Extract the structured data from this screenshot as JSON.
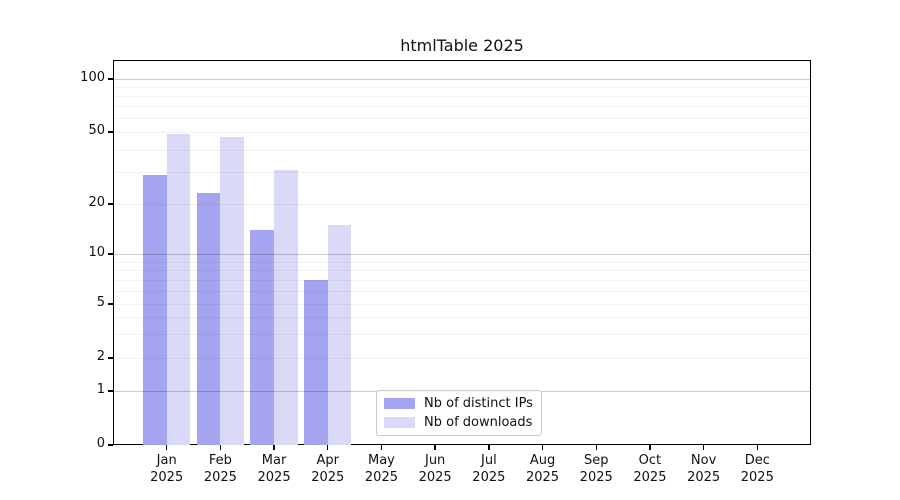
{
  "chart_data": {
    "type": "bar",
    "title": "htmlTable 2025",
    "categories": [
      "Jan",
      "Feb",
      "Mar",
      "Apr",
      "May",
      "Jun",
      "Jul",
      "Aug",
      "Sep",
      "Oct",
      "Nov",
      "Dec"
    ],
    "category_year": "2025",
    "series": [
      {
        "name": "Nb of distinct IPs",
        "color": "#a4a4f0",
        "values": [
          29,
          23,
          14,
          7,
          null,
          null,
          null,
          null,
          null,
          null,
          null,
          null
        ]
      },
      {
        "name": "Nb of downloads",
        "color": "#d9d9f8",
        "values": [
          49,
          47,
          31,
          15,
          null,
          null,
          null,
          null,
          null,
          null,
          null,
          null
        ]
      }
    ],
    "y_ticks": [
      0,
      1,
      2,
      5,
      10,
      20,
      50,
      100
    ],
    "y_scale": "symlog",
    "ylim": [
      0,
      130
    ],
    "grid": "horizontal log minor+major",
    "legend_position": "lower center inside plot",
    "colors": {
      "bar_dark": "#a4a4f0",
      "bar_light": "#d9d9f8",
      "grid_minor": "#ececec",
      "grid_major": "#c9c9c9",
      "spine": "#000000",
      "text": "#111111"
    }
  }
}
